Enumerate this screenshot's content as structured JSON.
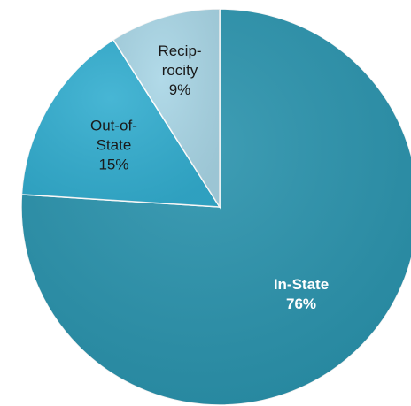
{
  "chart_data": {
    "type": "pie",
    "title": "",
    "start_angle_deg": 0,
    "direction": "clockwise",
    "slices": [
      {
        "name": "In-State",
        "value": 76,
        "label_lines": [
          "In-State",
          "76%"
        ],
        "color": "#2a93ad",
        "label_color": "#ffffff",
        "bold": true
      },
      {
        "name": "Out-of-State",
        "value": 15,
        "label_lines": [
          "Out-of-",
          "State",
          "15%"
        ],
        "color": "#33aed0",
        "label_color": "#1a1a1a",
        "bold": false
      },
      {
        "name": "Reciprocity",
        "value": 9,
        "label_lines": [
          "Recip-",
          "rocity",
          "9%"
        ],
        "color": "#a9d6e6",
        "label_color": "#1a1a1a",
        "bold": false
      }
    ]
  }
}
